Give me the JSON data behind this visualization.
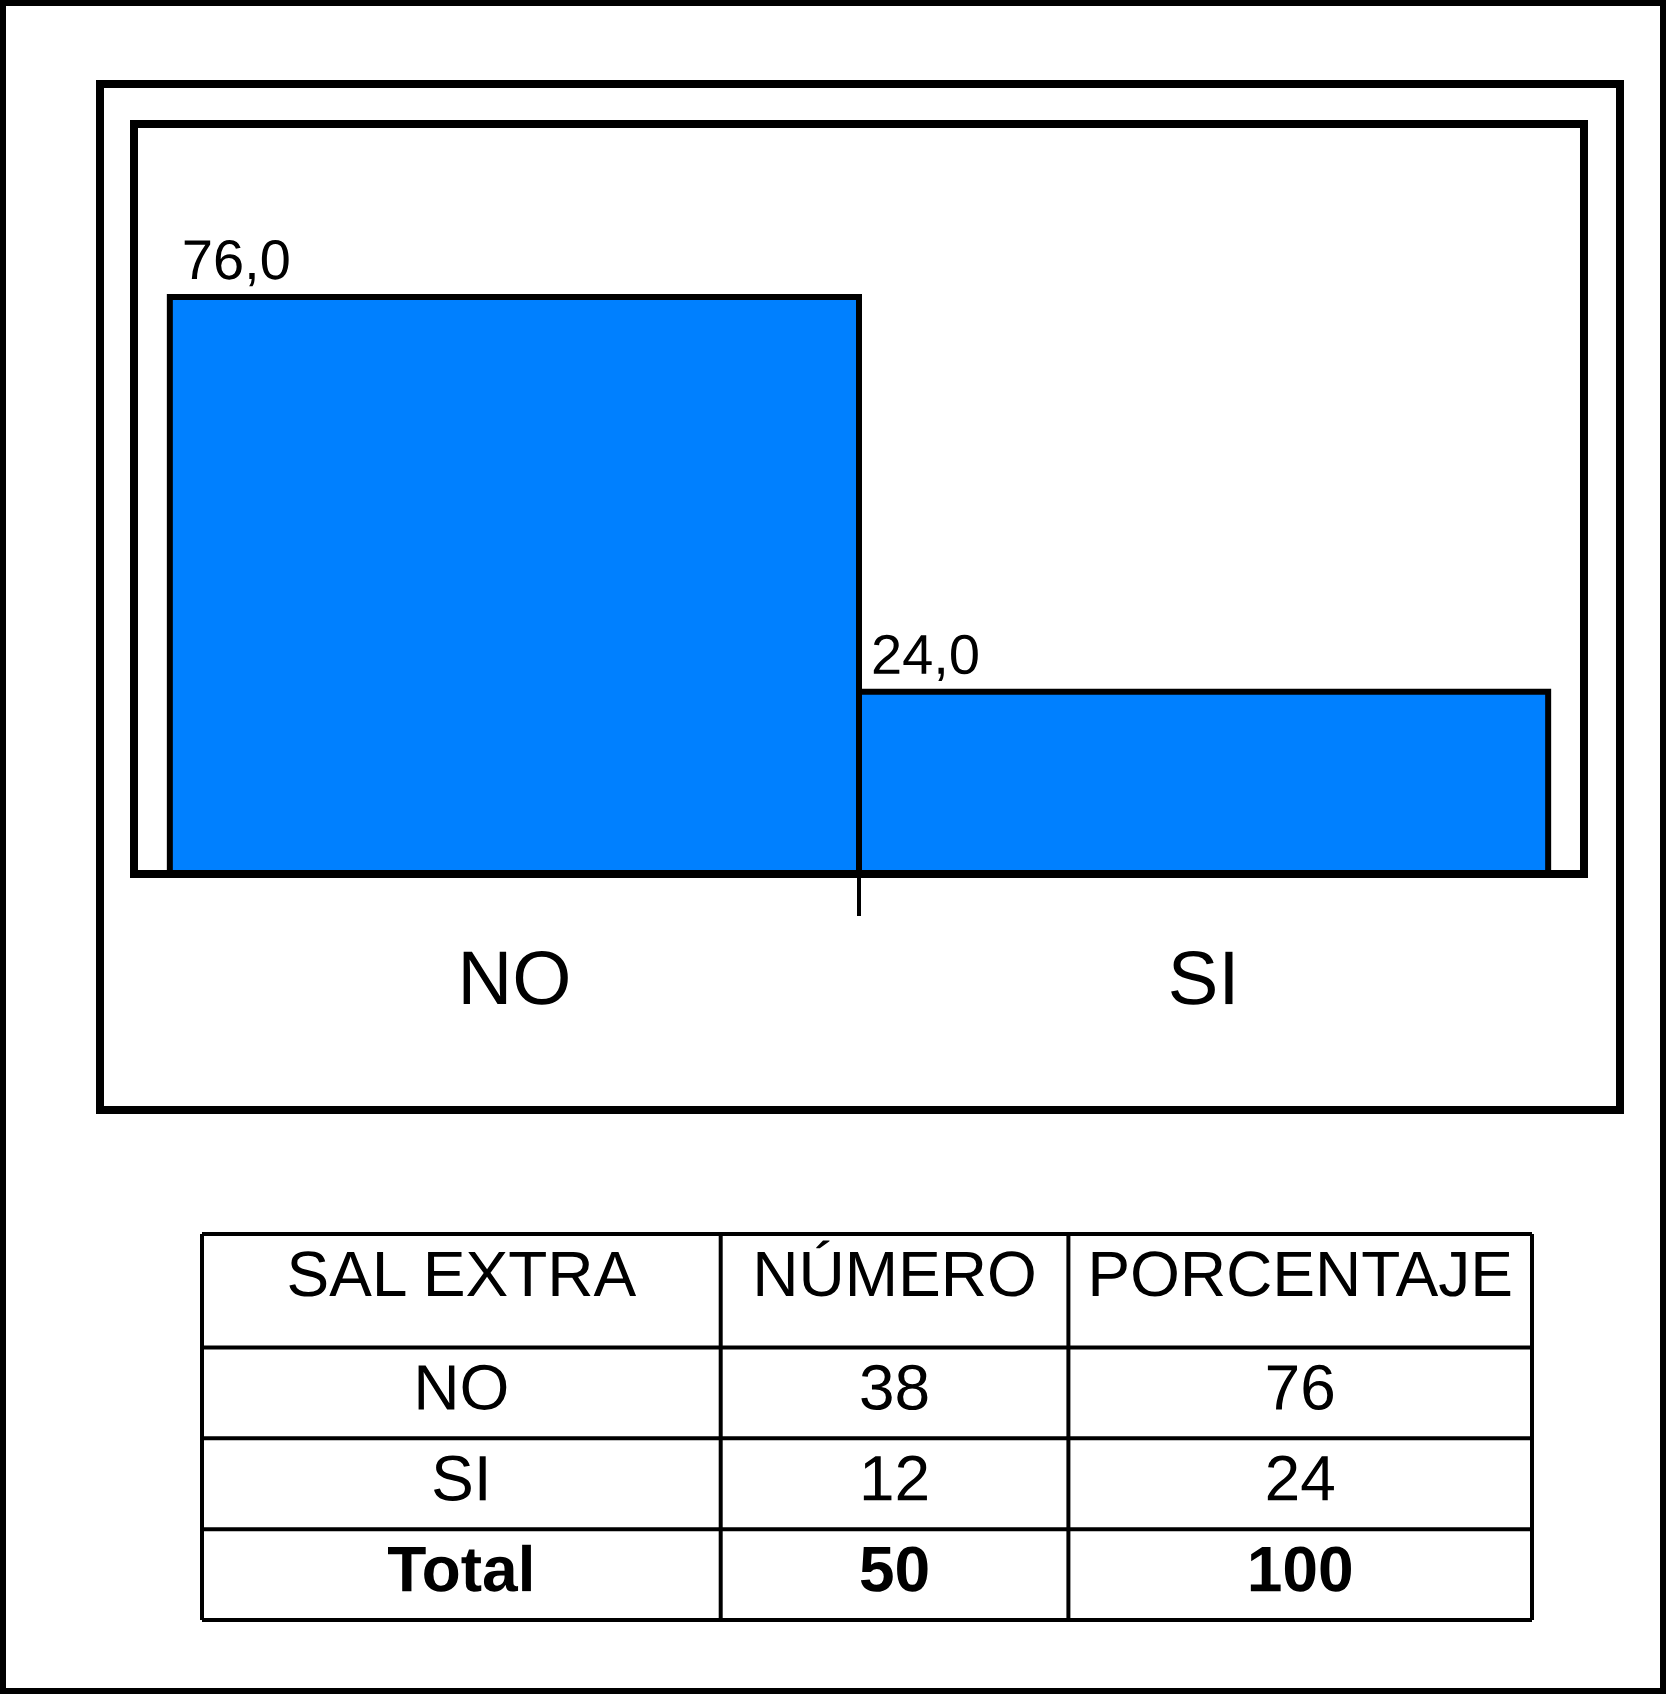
{
  "chart_data": [
    {
      "type": "bar",
      "categories": [
        "NO",
        "SI"
      ],
      "values": [
        76,
        24
      ],
      "value_labels": [
        "76,0",
        "24,0"
      ],
      "color": "#0080ff",
      "tick_labels": "x"
    },
    {
      "type": "other",
      "xlabel": "SAL EXTRA",
      "categories": [
        "NO",
        "SI",
        "Total"
      ],
      "series": [
        {
          "name": "NÚMERO",
          "values": [
            38,
            12,
            50
          ]
        },
        {
          "name": "PORCENTAJE",
          "values": [
            76,
            24,
            100
          ]
        }
      ],
      "data_labels": true
    }
  ]
}
